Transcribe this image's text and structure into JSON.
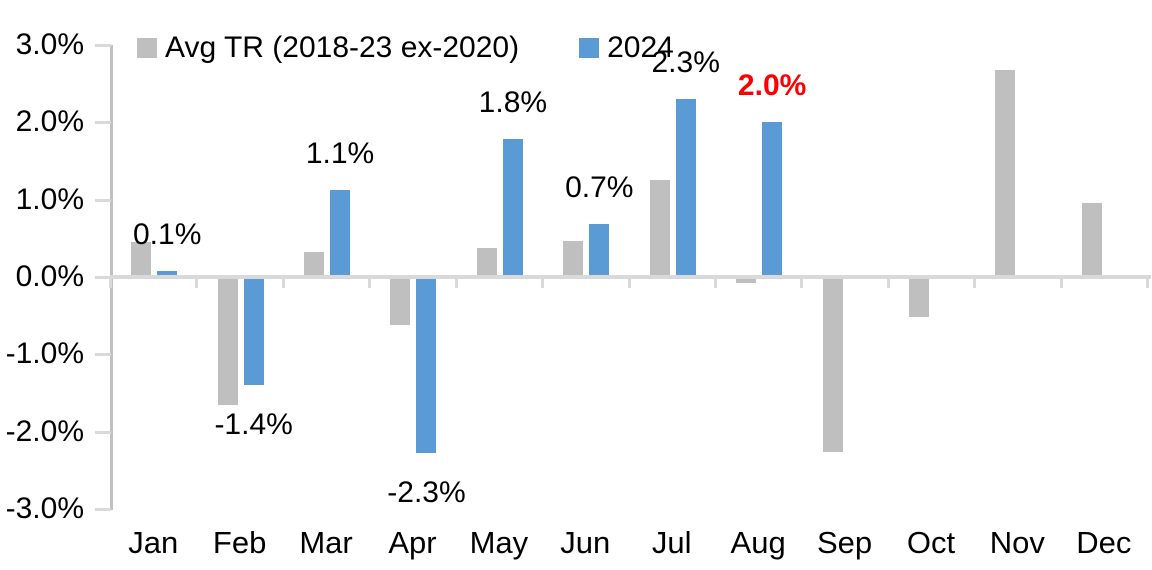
{
  "chart_data": {
    "type": "bar",
    "title": "",
    "xlabel": "",
    "ylabel": "",
    "categories": [
      "Jan",
      "Feb",
      "Mar",
      "Apr",
      "May",
      "Jun",
      "Jul",
      "Aug",
      "Sep",
      "Oct",
      "Nov",
      "Dec"
    ],
    "series": [
      {
        "name": "Avg TR (2018-23 ex-2020)",
        "color": "#BFBFBF",
        "values": [
          0.45,
          -1.65,
          0.32,
          -0.62,
          0.38,
          0.47,
          1.25,
          -0.08,
          -2.27,
          -0.52,
          2.68,
          0.96
        ]
      },
      {
        "name": "2024",
        "color": "#5B9BD5",
        "values": [
          0.08,
          -1.4,
          1.13,
          -2.28,
          1.79,
          0.69,
          2.3,
          2.0,
          null,
          null,
          null,
          null
        ]
      }
    ],
    "data_labels": [
      {
        "category": "Jan",
        "text": "0.1%",
        "color": "#000000",
        "bold": false
      },
      {
        "category": "Feb",
        "text": "-1.4%",
        "color": "#000000",
        "bold": false
      },
      {
        "category": "Mar",
        "text": "1.1%",
        "color": "#000000",
        "bold": false
      },
      {
        "category": "Apr",
        "text": "-2.3%",
        "color": "#000000",
        "bold": false
      },
      {
        "category": "May",
        "text": "1.8%",
        "color": "#000000",
        "bold": false
      },
      {
        "category": "Jun",
        "text": "0.7%",
        "color": "#000000",
        "bold": false
      },
      {
        "category": "Jul",
        "text": "2.3%",
        "color": "#000000",
        "bold": false
      },
      {
        "category": "Aug",
        "text": "2.0%",
        "color": "#FF0000",
        "bold": true
      }
    ],
    "y_axis": {
      "tick_labels": [
        "3.0%",
        "2.0%",
        "1.0%",
        "0.0%",
        "-1.0%",
        "-2.0%",
        "-3.0%"
      ],
      "tick_values": [
        3,
        2,
        1,
        0,
        -1,
        -2,
        -3
      ],
      "ylim": [
        -3,
        3
      ]
    },
    "legend_position": "top",
    "grid": false,
    "colors": {
      "axis_line": "#D9D9D9",
      "y_axis_line": "#C0C0C0",
      "highlight": "#FF0000",
      "text": "#000000",
      "background": "#FFFFFF"
    }
  }
}
